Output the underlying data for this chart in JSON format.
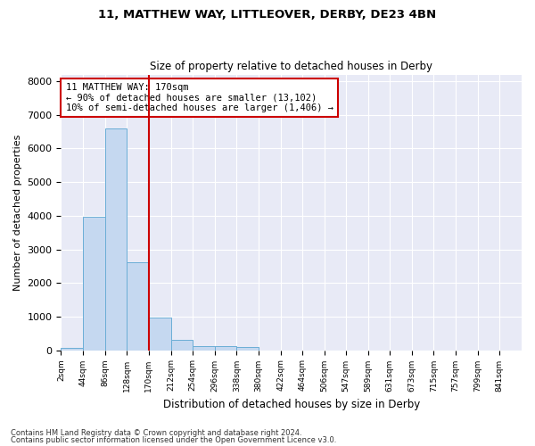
{
  "title1": "11, MATTHEW WAY, LITTLEOVER, DERBY, DE23 4BN",
  "title2": "Size of property relative to detached houses in Derby",
  "xlabel": "Distribution of detached houses by size in Derby",
  "ylabel": "Number of detached properties",
  "annotation_line1": "11 MATTHEW WAY: 170sqm",
  "annotation_line2": "← 90% of detached houses are smaller (13,102)",
  "annotation_line3": "10% of semi-detached houses are larger (1,406) →",
  "property_size": 170,
  "bin_edges": [
    2,
    44,
    86,
    128,
    170,
    212,
    254,
    296,
    338,
    380,
    422,
    464,
    506,
    547,
    589,
    631,
    673,
    715,
    757,
    799,
    841
  ],
  "bar_heights": [
    75,
    3980,
    6600,
    2620,
    960,
    310,
    120,
    110,
    90,
    0,
    0,
    0,
    0,
    0,
    0,
    0,
    0,
    0,
    0,
    0
  ],
  "bar_color": "#c5d8f0",
  "bar_edge_color": "#6baed6",
  "vline_color": "#cc0000",
  "vline_x": 170,
  "annotation_box_color": "#cc0000",
  "bg_color": "#e8eaf6",
  "grid_color": "#ffffff",
  "ylim": [
    0,
    8200
  ],
  "yticks": [
    0,
    1000,
    2000,
    3000,
    4000,
    5000,
    6000,
    7000,
    8000
  ],
  "footer1": "Contains HM Land Registry data © Crown copyright and database right 2024.",
  "footer2": "Contains public sector information licensed under the Open Government Licence v3.0."
}
